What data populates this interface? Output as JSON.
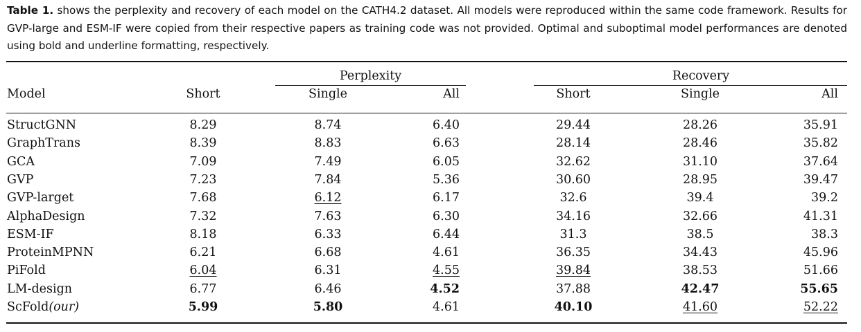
{
  "caption": {
    "label": "Table 1.",
    "text": " shows the perplexity and recovery of each model on the CATH4.2 dataset. All models were reproduced within the same code framework. Results for GVP-large and ESM-IF were copied from their respective papers as training code was not provided. Optimal and suboptimal model performances are denoted using bold and underline formatting, respectively."
  },
  "table": {
    "groups": {
      "perplexity": "Perplexity",
      "recovery": "Recovery"
    },
    "headers": {
      "model": "Model",
      "p_short": "Short",
      "p_single": "Single",
      "p_all": "All",
      "r_short": "Short",
      "r_single": "Single",
      "r_all": "All"
    },
    "rows": [
      {
        "model": "StructGNN",
        "cells": [
          {
            "v": "8.29"
          },
          {
            "v": "8.74"
          },
          {
            "v": "6.40"
          },
          {
            "v": "29.44"
          },
          {
            "v": "28.26"
          },
          {
            "v": "35.91"
          }
        ]
      },
      {
        "model": "GraphTrans",
        "cells": [
          {
            "v": "8.39"
          },
          {
            "v": "8.83"
          },
          {
            "v": "6.63"
          },
          {
            "v": "28.14"
          },
          {
            "v": "28.46"
          },
          {
            "v": "35.82"
          }
        ]
      },
      {
        "model": "GCA",
        "cells": [
          {
            "v": "7.09"
          },
          {
            "v": "7.49"
          },
          {
            "v": "6.05"
          },
          {
            "v": "32.62"
          },
          {
            "v": "31.10"
          },
          {
            "v": "37.64"
          }
        ]
      },
      {
        "model": "GVP",
        "cells": [
          {
            "v": "7.23"
          },
          {
            "v": "7.84"
          },
          {
            "v": "5.36"
          },
          {
            "v": "30.60"
          },
          {
            "v": "28.95"
          },
          {
            "v": "39.47"
          }
        ]
      },
      {
        "model": "GVP-larget",
        "cells": [
          {
            "v": "7.68"
          },
          {
            "v": "6.12",
            "style": "underline"
          },
          {
            "v": "6.17"
          },
          {
            "v": "32.6"
          },
          {
            "v": "39.4"
          },
          {
            "v": "39.2"
          }
        ]
      },
      {
        "model": "AlphaDesign",
        "cells": [
          {
            "v": "7.32"
          },
          {
            "v": "7.63"
          },
          {
            "v": "6.30"
          },
          {
            "v": "34.16"
          },
          {
            "v": "32.66"
          },
          {
            "v": "41.31"
          }
        ]
      },
      {
        "model": "ESM-IF",
        "cells": [
          {
            "v": "8.18"
          },
          {
            "v": "6.33"
          },
          {
            "v": "6.44"
          },
          {
            "v": "31.3"
          },
          {
            "v": "38.5"
          },
          {
            "v": "38.3"
          }
        ]
      },
      {
        "model": "ProteinMPNN",
        "cells": [
          {
            "v": "6.21"
          },
          {
            "v": "6.68"
          },
          {
            "v": "4.61"
          },
          {
            "v": "36.35"
          },
          {
            "v": "34.43"
          },
          {
            "v": "45.96"
          }
        ]
      },
      {
        "model": "PiFold",
        "cells": [
          {
            "v": "6.04",
            "style": "underline"
          },
          {
            "v": "6.31"
          },
          {
            "v": "4.55",
            "style": "underline"
          },
          {
            "v": "39.84",
            "style": "underline"
          },
          {
            "v": "38.53"
          },
          {
            "v": "51.66"
          }
        ]
      },
      {
        "model": "LM-design",
        "cells": [
          {
            "v": "6.77"
          },
          {
            "v": "6.46"
          },
          {
            "v": "4.52",
            "style": "bold"
          },
          {
            "v": "37.88"
          },
          {
            "v": "42.47",
            "style": "bold"
          },
          {
            "v": "55.65",
            "style": "bold"
          }
        ]
      },
      {
        "model": "ScFold",
        "model_suffix": "(our)",
        "cells": [
          {
            "v": "5.99",
            "style": "bold"
          },
          {
            "v": "5.80",
            "style": "bold"
          },
          {
            "v": "4.61"
          },
          {
            "v": "40.10",
            "style": "bold"
          },
          {
            "v": "41.60",
            "style": "underline"
          },
          {
            "v": "52.22",
            "style": "underline"
          }
        ]
      }
    ]
  }
}
